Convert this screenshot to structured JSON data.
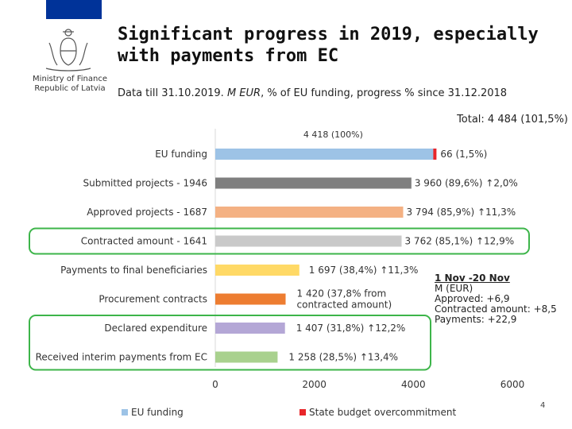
{
  "header": {
    "title_line1": "Significant progress in 2019, especially",
    "title_line2": "with payments from EC",
    "subtitle_pre": "Data till 31.10.2019. ",
    "subtitle_em": "M EUR",
    "subtitle_post": ", % of EU funding, progress % since 31.12.2018",
    "ministry_line1": "Ministry of Finance",
    "ministry_line2": "Republic of Latvia",
    "page_number": "4"
  },
  "colors": {
    "flag": "#003399",
    "highlight_box": "#3db54a"
  },
  "chart_data": {
    "type": "bar",
    "orientation": "horizontal",
    "total_label": "Total: 4 484 (101,5%)",
    "top_label": "4 418 (100%)",
    "xlim": [
      0,
      6000
    ],
    "xticks": [
      0,
      2000,
      4000,
      6000
    ],
    "xtick_labels": [
      "0",
      "2000",
      "4000",
      "6000"
    ],
    "categories": [
      "EU funding",
      "Submitted projects - 1946",
      "Approved projects - 1687",
      "Contracted amount - 1641",
      "Payments to final beneficiaries",
      "Procurement contracts",
      "Declared expenditure",
      "Received interim payments from EC"
    ],
    "values": [
      4418,
      3960,
      3794,
      3762,
      1697,
      1420,
      1407,
      1258
    ],
    "bar_colors": [
      "#9dc3e6",
      "#7f7f7f",
      "#f4b183",
      "#c9c9c9",
      "#ffd966",
      "#ed7d31",
      "#b4a7d6",
      "#a9d18e"
    ],
    "value_labels": [
      [
        "66 (1,5%)"
      ],
      [
        "3 960 (89,6%) ↑2,0%"
      ],
      [
        "3 794 (85,9%) ↑11,3%"
      ],
      [
        "3 762 (85,1%) ↑12,9%"
      ],
      [
        "1 697 (38,4%) ↑11,3%"
      ],
      [
        "1 420 (37,8% from",
        "contracted amount)"
      ],
      [
        "1 407 (31,8%) ↑12,2%"
      ],
      [
        "1 258 (28,5%) ↑13,4%"
      ]
    ],
    "overcommitment": {
      "bar_index": 0,
      "value": 66,
      "color": "#e8262a"
    },
    "highlight_groups": [
      [
        3
      ],
      [
        6,
        7
      ]
    ],
    "legend": [
      {
        "label": "EU funding",
        "color": "#9dc3e6"
      },
      {
        "label": "State budget overcommitment",
        "color": "#e8262a"
      }
    ],
    "legend_position": "bottom"
  },
  "note": {
    "heading": "1 Nov -20 Nov",
    "unit": "M (EUR)",
    "approved": "Approved: +6,9",
    "contracted": "Contracted amount: +8,5",
    "payments": "Payments: +22,9"
  }
}
